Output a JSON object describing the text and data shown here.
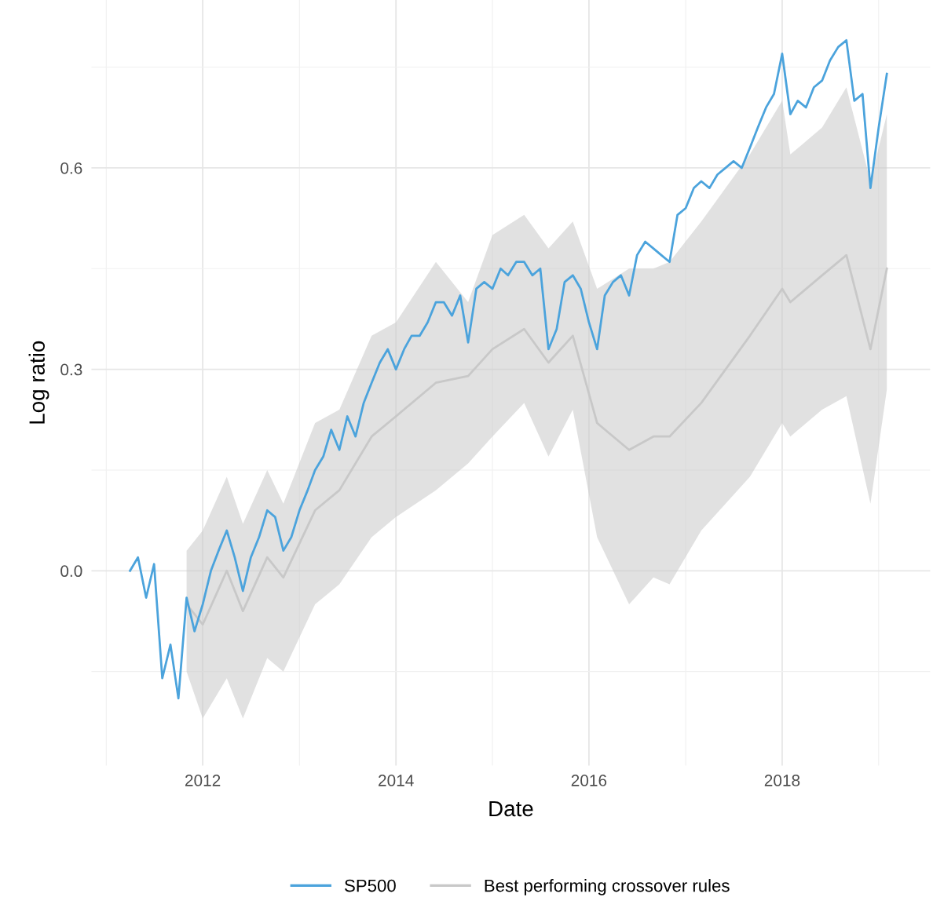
{
  "chart_data": {
    "type": "line",
    "xlabel": "Date",
    "ylabel": "Log ratio",
    "xlim": [
      "2010-11-06",
      "2019-07-15"
    ],
    "xticks": [
      {
        "value": "2011-01-01",
        "label": null
      },
      {
        "value": "2012-01-01",
        "label": "2012"
      },
      {
        "value": "2013-01-01",
        "label": null
      },
      {
        "value": "2014-01-01",
        "label": "2014"
      },
      {
        "value": "2015-01-01",
        "label": null
      },
      {
        "value": "2016-01-01",
        "label": "2016"
      },
      {
        "value": "2017-01-01",
        "label": null
      },
      {
        "value": "2018-01-01",
        "label": "2018"
      },
      {
        "value": "2019-01-01",
        "label": null
      }
    ],
    "ylim": [
      -0.29,
      0.85
    ],
    "yticks": [
      {
        "value": -0.15,
        "label": null
      },
      {
        "value": 0,
        "label": "0.0"
      },
      {
        "value": 0.15,
        "label": null
      },
      {
        "value": 0.3,
        "label": "0.3"
      },
      {
        "value": 0.45,
        "label": null
      },
      {
        "value": 0.6,
        "label": "0.6"
      },
      {
        "value": 0.75,
        "label": null
      }
    ],
    "grid": true,
    "legend": "bottom",
    "series": [
      {
        "name": "Best performing crossover rules",
        "color": "#c8c8c8",
        "x": [
          "2011-11",
          "2012-01",
          "2012-04",
          "2012-06",
          "2012-09",
          "2012-11",
          "2013-03",
          "2013-06",
          "2013-10",
          "2014-01",
          "2014-06",
          "2014-10",
          "2015-01",
          "2015-05",
          "2015-08",
          "2015-11",
          "2016-02",
          "2016-06",
          "2016-09",
          "2016-11",
          "2017-03",
          "2017-06",
          "2017-09",
          "2018-01",
          "2018-02",
          "2018-06",
          "2018-09",
          "2018-12",
          "2019-02"
        ],
        "values": [
          -0.05,
          -0.08,
          0.0,
          -0.06,
          0.02,
          -0.01,
          0.09,
          0.12,
          0.2,
          0.23,
          0.28,
          0.29,
          0.33,
          0.36,
          0.31,
          0.35,
          0.22,
          0.18,
          0.2,
          0.2,
          0.25,
          0.3,
          0.35,
          0.42,
          0.4,
          0.44,
          0.47,
          0.33,
          0.45
        ],
        "lower": [
          -0.15,
          -0.22,
          -0.16,
          -0.22,
          -0.13,
          -0.15,
          -0.05,
          -0.02,
          0.05,
          0.08,
          0.12,
          0.16,
          0.2,
          0.25,
          0.17,
          0.24,
          0.05,
          -0.05,
          -0.01,
          -0.02,
          0.06,
          0.1,
          0.14,
          0.22,
          0.2,
          0.24,
          0.26,
          0.1,
          0.27
        ],
        "upper": [
          0.03,
          0.06,
          0.14,
          0.07,
          0.15,
          0.1,
          0.22,
          0.24,
          0.35,
          0.37,
          0.46,
          0.4,
          0.5,
          0.53,
          0.48,
          0.52,
          0.42,
          0.45,
          0.45,
          0.46,
          0.52,
          0.57,
          0.62,
          0.7,
          0.62,
          0.66,
          0.72,
          0.58,
          0.68
        ]
      },
      {
        "name": "SP500",
        "color": "#4ba3dc",
        "x": [
          "2011-04",
          "2011-05",
          "2011-06",
          "2011-07",
          "2011-08",
          "2011-09",
          "2011-10",
          "2011-11",
          "2011-12",
          "2012-01",
          "2012-02",
          "2012-03",
          "2012-04",
          "2012-05",
          "2012-06",
          "2012-07",
          "2012-08",
          "2012-09",
          "2012-10",
          "2012-11",
          "2012-12",
          "2013-01",
          "2013-02",
          "2013-03",
          "2013-04",
          "2013-05",
          "2013-06",
          "2013-07",
          "2013-08",
          "2013-09",
          "2013-10",
          "2013-11",
          "2013-12",
          "2014-01",
          "2014-02",
          "2014-03",
          "2014-04",
          "2014-05",
          "2014-06",
          "2014-07",
          "2014-08",
          "2014-09",
          "2014-10",
          "2014-11",
          "2014-12",
          "2015-01",
          "2015-02",
          "2015-03",
          "2015-04",
          "2015-05",
          "2015-06",
          "2015-07",
          "2015-08",
          "2015-09",
          "2015-10",
          "2015-11",
          "2015-12",
          "2016-01",
          "2016-02",
          "2016-03",
          "2016-04",
          "2016-05",
          "2016-06",
          "2016-07",
          "2016-08",
          "2016-09",
          "2016-10",
          "2016-11",
          "2016-12",
          "2017-01",
          "2017-02",
          "2017-03",
          "2017-04",
          "2017-05",
          "2017-06",
          "2017-07",
          "2017-08",
          "2017-09",
          "2017-10",
          "2017-11",
          "2017-12",
          "2018-01",
          "2018-02",
          "2018-03",
          "2018-04",
          "2018-05",
          "2018-06",
          "2018-07",
          "2018-08",
          "2018-09",
          "2018-10",
          "2018-11",
          "2018-12",
          "2019-01",
          "2019-02"
        ],
        "values": [
          0.0,
          0.02,
          -0.04,
          0.01,
          -0.16,
          -0.11,
          -0.19,
          -0.04,
          -0.09,
          -0.05,
          0.0,
          0.03,
          0.06,
          0.02,
          -0.03,
          0.02,
          0.05,
          0.09,
          0.08,
          0.03,
          0.05,
          0.09,
          0.12,
          0.15,
          0.17,
          0.21,
          0.18,
          0.23,
          0.2,
          0.25,
          0.28,
          0.31,
          0.33,
          0.3,
          0.33,
          0.35,
          0.35,
          0.37,
          0.4,
          0.4,
          0.38,
          0.41,
          0.34,
          0.42,
          0.43,
          0.42,
          0.45,
          0.44,
          0.46,
          0.46,
          0.44,
          0.45,
          0.33,
          0.36,
          0.43,
          0.44,
          0.42,
          0.37,
          0.33,
          0.41,
          0.43,
          0.44,
          0.41,
          0.47,
          0.49,
          0.48,
          0.47,
          0.46,
          0.53,
          0.54,
          0.57,
          0.58,
          0.57,
          0.59,
          0.6,
          0.61,
          0.6,
          0.63,
          0.66,
          0.69,
          0.71,
          0.77,
          0.68,
          0.7,
          0.69,
          0.72,
          0.73,
          0.76,
          0.78,
          0.79,
          0.7,
          0.71,
          0.57,
          0.66,
          0.74
        ]
      }
    ]
  }
}
